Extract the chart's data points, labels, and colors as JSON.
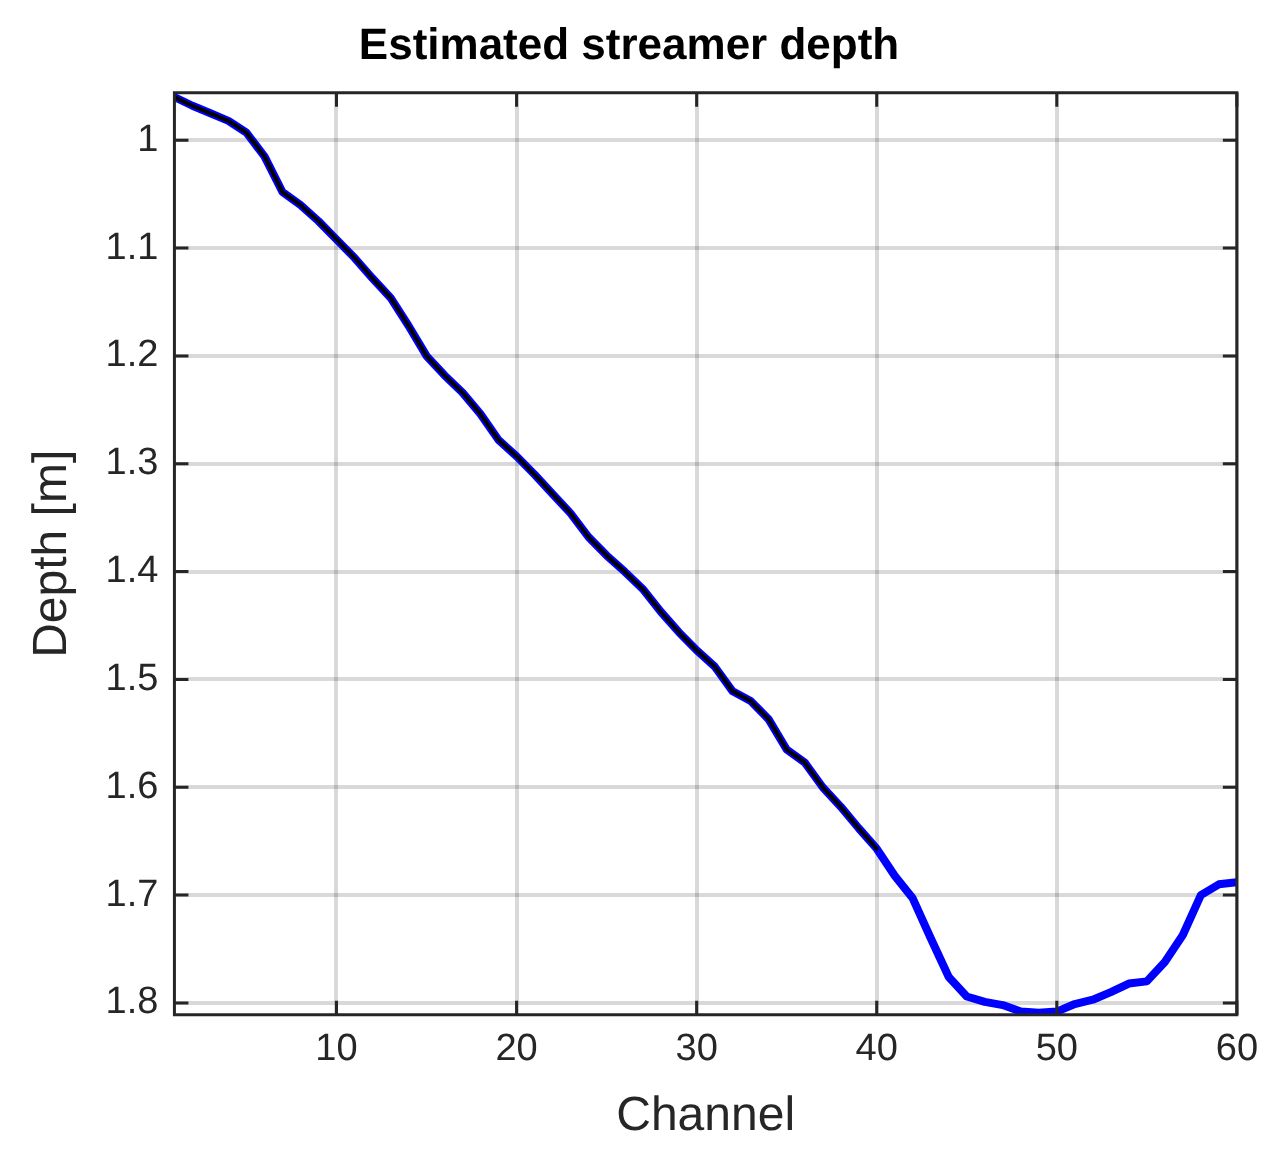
{
  "chart_data": {
    "type": "line",
    "title": "Estimated streamer depth",
    "xlabel": "Channel",
    "ylabel": "Depth [m]",
    "x": [
      1,
      2,
      3,
      4,
      5,
      6,
      7,
      8,
      9,
      10,
      11,
      12,
      13,
      14,
      15,
      16,
      17,
      18,
      19,
      20,
      21,
      22,
      23,
      24,
      25,
      26,
      27,
      28,
      29,
      30,
      31,
      32,
      33,
      34,
      35,
      36,
      37,
      38,
      39,
      40,
      41,
      42,
      43,
      44,
      45,
      46,
      47,
      48,
      49,
      50,
      51,
      52,
      53,
      54,
      55,
      56,
      57,
      58,
      59,
      60
    ],
    "series": [
      {
        "color": "#0000ff",
        "values": [
          0.96,
          0.968,
          0.975,
          0.982,
          0.993,
          1.015,
          1.048,
          1.06,
          1.075,
          1.092,
          1.109,
          1.128,
          1.146,
          1.172,
          1.2,
          1.218,
          1.234,
          1.254,
          1.278,
          1.293,
          1.31,
          1.328,
          1.346,
          1.368,
          1.385,
          1.4,
          1.416,
          1.437,
          1.456,
          1.473,
          1.488,
          1.511,
          1.52,
          1.537,
          1.565,
          1.577,
          1.6,
          1.618,
          1.638,
          1.657,
          1.682,
          1.703,
          1.74,
          1.776,
          1.794,
          1.799,
          1.802,
          1.808,
          1.809,
          1.808,
          1.801,
          1.797,
          1.79,
          1.782,
          1.78,
          1.762,
          1.737,
          1.7,
          1.69,
          1.688
        ]
      },
      {
        "color": "#000000",
        "values": [
          0.96,
          0.968,
          0.975,
          0.982,
          0.993,
          1.015,
          1.048,
          1.06,
          1.075,
          1.092,
          1.109,
          1.128,
          1.146,
          1.172,
          1.2,
          1.218,
          1.234,
          1.254,
          1.278,
          1.293,
          1.31,
          1.328,
          1.346,
          1.368,
          1.385,
          1.4,
          1.416,
          1.437,
          1.456,
          1.473,
          1.488,
          1.511,
          1.52,
          1.537,
          1.565,
          1.577,
          1.6,
          1.618,
          1.638,
          1.657,
          null,
          null,
          null,
          null,
          null,
          null,
          null,
          null,
          null,
          null,
          null,
          null,
          null,
          null,
          null,
          null,
          null,
          null,
          null,
          null
        ]
      }
    ],
    "xlim": [
      1,
      60
    ],
    "xticks": [
      10,
      20,
      30,
      40,
      50,
      60
    ],
    "ylim": [
      1.811,
      0.956
    ],
    "yticks": [
      1,
      1.1,
      1.2,
      1.3,
      1.4,
      1.5,
      1.6,
      1.7,
      1.8
    ],
    "grid": true,
    "legend": false,
    "marker": "none",
    "line_style": "solid"
  }
}
